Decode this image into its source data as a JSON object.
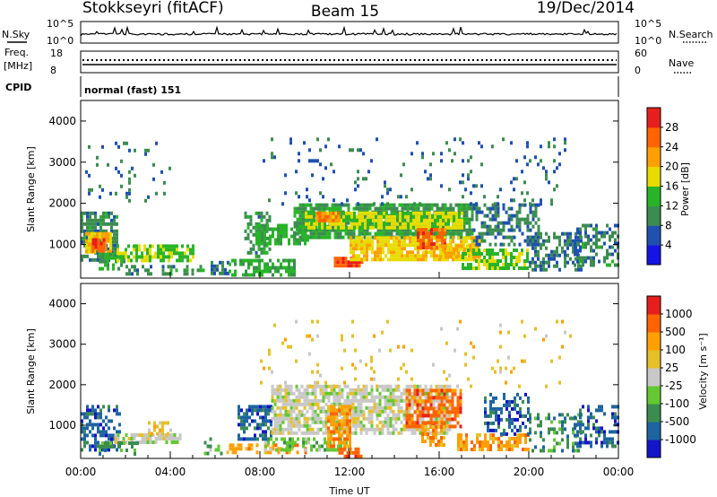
{
  "header": {
    "station": "Stokkseyri (fitACF)",
    "beam": "Beam 15",
    "date": "19/Dec/2014"
  },
  "status_panels": {
    "nsky_label": "N.Sky",
    "nsky_ticks": [
      "10^5",
      "10^0"
    ],
    "nsearch_label": "N.Search",
    "nsearch_ticks": [
      "10^5",
      "10^0"
    ],
    "freq_label": "Freq.",
    "freq_unit": "[MHz]",
    "freq_ticks": [
      "18",
      "8"
    ],
    "nave_label": "Nave",
    "nave_ticks": [
      "60",
      "0"
    ],
    "cpid_label": "CPID",
    "cpid_text": "normal (fast) 151"
  },
  "colors": {
    "power_scale": [
      "#1414e6",
      "#2050b0",
      "#3c8c50",
      "#28b428",
      "#e6dc00",
      "#ffa000",
      "#ff6400",
      "#e61e1e"
    ],
    "velocity_scale": [
      "#e61e1e",
      "#ff6400",
      "#ffa000",
      "#e6c028",
      "#c8c8c8",
      "#64c832",
      "#3c8c50",
      "#1e64a0",
      "#1414c8"
    ]
  },
  "chart_data": [
    {
      "type": "heatmap",
      "quantity": "Power",
      "ylabel": "Slant Range [km]",
      "yticks": [
        "1000",
        "2000",
        "3000",
        "4000"
      ],
      "ylim": [
        180,
        4500
      ],
      "colorbar": {
        "label": "Power [dB]",
        "ticks": [
          "4",
          "8",
          "12",
          "16",
          "20",
          "24",
          "28"
        ],
        "range": [
          0,
          30
        ]
      },
      "blobs": [
        {
          "t0": 0.0,
          "t1": 1.6,
          "r0": 600,
          "r1": 1800,
          "v": 8,
          "d": 0.75
        },
        {
          "t0": 0.2,
          "t1": 1.4,
          "r0": 800,
          "r1": 1300,
          "v": 20,
          "d": 0.85
        },
        {
          "t0": 0.5,
          "t1": 1.1,
          "r0": 850,
          "r1": 1150,
          "v": 27,
          "d": 0.9
        },
        {
          "t0": 0.8,
          "t1": 2.0,
          "r0": 400,
          "r1": 800,
          "v": 11,
          "d": 0.6
        },
        {
          "t0": 1.6,
          "t1": 5.0,
          "r0": 650,
          "r1": 1000,
          "v": 14,
          "d": 0.7
        },
        {
          "t0": 2.0,
          "t1": 3.2,
          "r0": 300,
          "r1": 500,
          "v": 8,
          "d": 0.45
        },
        {
          "t0": 3.5,
          "t1": 5.5,
          "r0": 300,
          "r1": 500,
          "v": 9,
          "d": 0.4
        },
        {
          "t0": 0.2,
          "t1": 4.0,
          "r0": 2100,
          "r1": 3500,
          "v": 6,
          "d": 0.08
        },
        {
          "t0": 5.8,
          "t1": 6.6,
          "r0": 300,
          "r1": 600,
          "v": 7,
          "d": 0.5
        },
        {
          "t0": 6.6,
          "t1": 9.5,
          "r0": 300,
          "r1": 650,
          "v": 12,
          "d": 0.65
        },
        {
          "t0": 7.3,
          "t1": 8.5,
          "r0": 750,
          "r1": 1800,
          "v": 9,
          "d": 0.55
        },
        {
          "t0": 7.8,
          "t1": 10.2,
          "r0": 1000,
          "r1": 1500,
          "v": 12,
          "d": 0.65
        },
        {
          "t0": 9.5,
          "t1": 17.5,
          "r0": 1200,
          "r1": 2000,
          "v": 10,
          "d": 0.85
        },
        {
          "t0": 10.0,
          "t1": 17.0,
          "r0": 1400,
          "r1": 1800,
          "v": 16,
          "d": 0.85
        },
        {
          "t0": 10.5,
          "t1": 11.5,
          "r0": 1550,
          "r1": 1800,
          "v": 23,
          "d": 0.8
        },
        {
          "t0": 11.3,
          "t1": 12.6,
          "r0": 500,
          "r1": 700,
          "v": 28,
          "d": 0.9
        },
        {
          "t0": 12.0,
          "t1": 17.8,
          "r0": 600,
          "r1": 1200,
          "v": 18,
          "d": 0.8
        },
        {
          "t0": 15.0,
          "t1": 16.3,
          "r0": 900,
          "r1": 1400,
          "v": 26,
          "d": 0.85
        },
        {
          "t0": 16.0,
          "t1": 17.8,
          "r0": 700,
          "r1": 1000,
          "v": 20,
          "d": 0.8
        },
        {
          "t0": 17.5,
          "t1": 20.5,
          "r0": 1000,
          "r1": 2000,
          "v": 7,
          "d": 0.5
        },
        {
          "t0": 17.0,
          "t1": 20.0,
          "r0": 400,
          "r1": 900,
          "v": 14,
          "d": 0.6
        },
        {
          "t0": 20.0,
          "t1": 22.3,
          "r0": 400,
          "r1": 1300,
          "v": 7,
          "d": 0.55
        },
        {
          "t0": 22.0,
          "t1": 24.0,
          "r0": 500,
          "r1": 1500,
          "v": 8,
          "d": 0.5
        },
        {
          "t0": 8.0,
          "t1": 22.0,
          "r0": 2000,
          "r1": 3600,
          "v": 6,
          "d": 0.07
        }
      ]
    },
    {
      "type": "heatmap",
      "quantity": "Velocity",
      "ylabel": "Slant Range [km]",
      "yticks": [
        "1000",
        "2000",
        "3000",
        "4000"
      ],
      "ylim": [
        180,
        4500
      ],
      "colorbar": {
        "label": "Velocity [m s⁻¹]",
        "ticks": [
          "1000",
          "500",
          "100",
          "25",
          "-25",
          "-100",
          "-500",
          "-1000"
        ]
      },
      "xlabel": "Time UT",
      "xticks": [
        "00:00",
        "04:00",
        "08:00",
        "12:00",
        "16:00",
        "20:00",
        "00:00"
      ],
      "xlim": [
        0,
        24
      ],
      "blobs": [
        {
          "t0": 0.0,
          "t1": 1.8,
          "r0": 400,
          "r1": 1500,
          "v": 7,
          "d": 0.55
        },
        {
          "t0": 1.5,
          "t1": 4.5,
          "r0": 600,
          "r1": 800,
          "v": 4,
          "d": 0.75
        },
        {
          "t0": 0.8,
          "t1": 2.5,
          "r0": 250,
          "r1": 600,
          "v": 6,
          "d": 0.4
        },
        {
          "t0": 3.0,
          "t1": 4.0,
          "r0": 800,
          "r1": 1100,
          "v": 3,
          "d": 0.5
        },
        {
          "t0": 5.5,
          "t1": 6.3,
          "r0": 250,
          "r1": 700,
          "v": 5,
          "d": 0.4
        },
        {
          "t0": 6.5,
          "t1": 10.0,
          "r0": 300,
          "r1": 550,
          "v": 2,
          "d": 0.5
        },
        {
          "t0": 7.0,
          "t1": 8.5,
          "r0": 700,
          "r1": 1500,
          "v": 7,
          "d": 0.6
        },
        {
          "t0": 8.2,
          "t1": 12.0,
          "r0": 400,
          "r1": 700,
          "v": 5,
          "d": 0.5
        },
        {
          "t0": 8.5,
          "t1": 16.5,
          "r0": 800,
          "r1": 2000,
          "v": 4,
          "d": 0.75
        },
        {
          "t0": 11.0,
          "t1": 12.0,
          "r0": 500,
          "r1": 1500,
          "v": 2,
          "d": 0.8
        },
        {
          "t0": 11.5,
          "t1": 12.5,
          "r0": 250,
          "r1": 450,
          "v": 1,
          "d": 0.7
        },
        {
          "t0": 14.5,
          "t1": 17.0,
          "r0": 1000,
          "r1": 1900,
          "v": 1,
          "d": 0.65
        },
        {
          "t0": 15.2,
          "t1": 16.2,
          "r0": 500,
          "r1": 1000,
          "v": 2,
          "d": 0.6
        },
        {
          "t0": 16.8,
          "t1": 20.0,
          "r0": 400,
          "r1": 800,
          "v": 2,
          "d": 0.6
        },
        {
          "t0": 18.0,
          "t1": 20.0,
          "r0": 800,
          "r1": 1800,
          "v": 7,
          "d": 0.45
        },
        {
          "t0": 20.0,
          "t1": 22.3,
          "r0": 400,
          "r1": 1300,
          "v": 6,
          "d": 0.4
        },
        {
          "t0": 22.0,
          "t1": 24.0,
          "r0": 500,
          "r1": 1500,
          "v": 7,
          "d": 0.4
        },
        {
          "t0": 8.0,
          "t1": 22.0,
          "r0": 2000,
          "r1": 3600,
          "v": 3,
          "d": 0.05
        }
      ]
    }
  ]
}
